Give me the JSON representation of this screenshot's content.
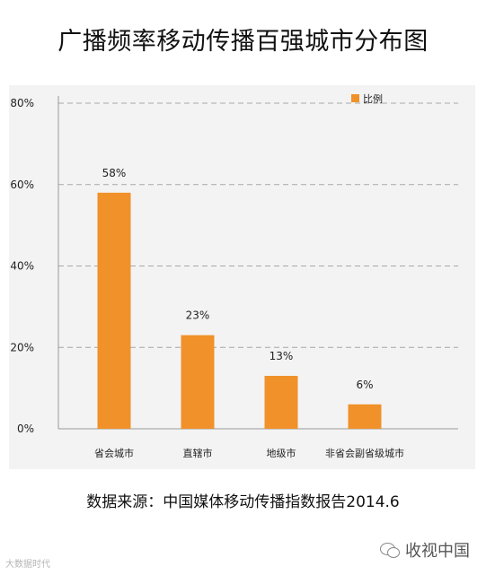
{
  "title": "广播频率移动传播百强城市分布图",
  "source": "数据来源：中国媒体移动传播指数报告2014.6",
  "watermark_left": "大数据时代",
  "watermark_right": "收视中国",
  "chart_data": {
    "type": "bar",
    "categories": [
      "省会城市",
      "直辖市",
      "地级市",
      "非省会副省级城市"
    ],
    "series": [
      {
        "name": "比例",
        "values": [
          58,
          23,
          13,
          6
        ]
      }
    ],
    "data_labels": [
      "58%",
      "23%",
      "13%",
      "6%"
    ],
    "yticks": [
      0,
      20,
      40,
      60,
      80
    ],
    "ytick_labels": [
      "0%",
      "20%",
      "40%",
      "60%",
      "80%"
    ],
    "ylim": [
      0,
      80
    ],
    "grid": true,
    "legend_position": "top-right",
    "colors": {
      "bar": "#f0912a",
      "grid": "#a8a8a8",
      "panel": "#f3f3f3"
    }
  }
}
